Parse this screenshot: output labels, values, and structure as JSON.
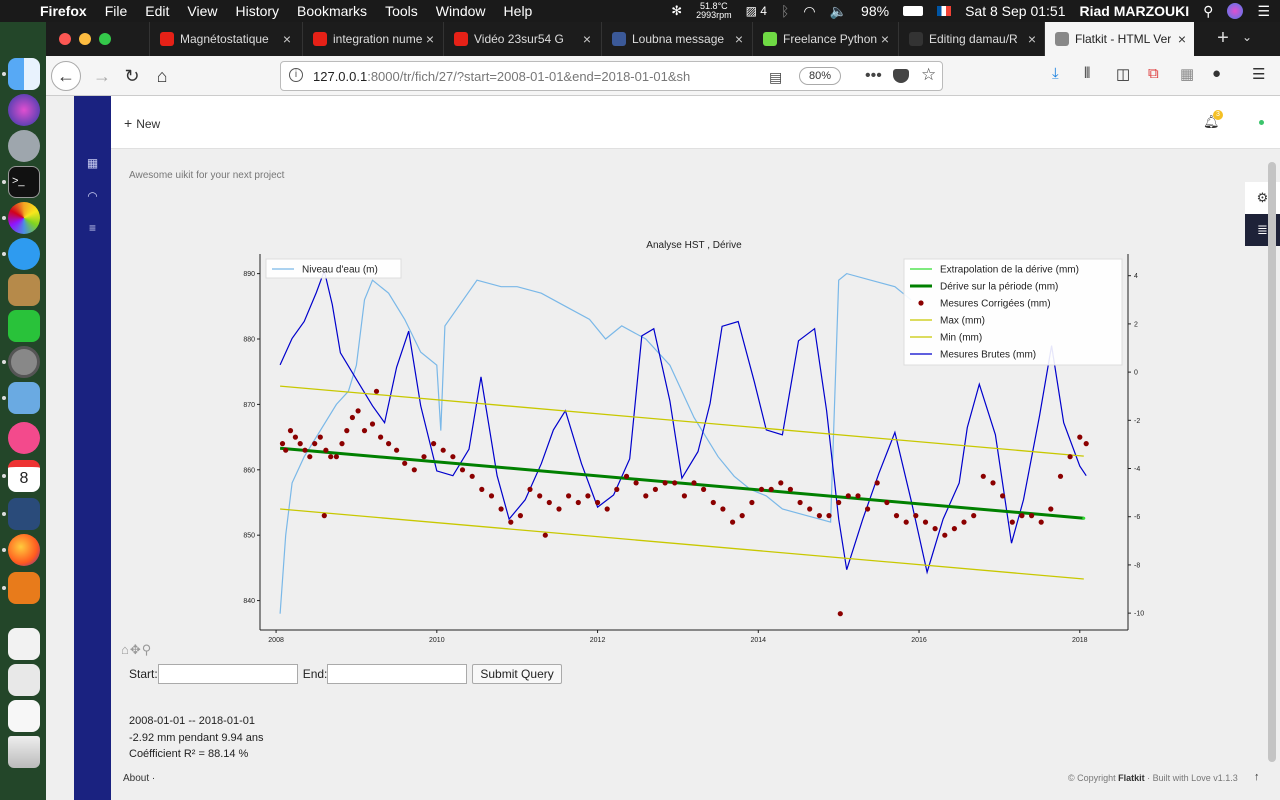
{
  "menubar": {
    "app": "Firefox",
    "items": [
      "File",
      "Edit",
      "View",
      "History",
      "Bookmarks",
      "Tools",
      "Window",
      "Help"
    ],
    "temp": "51.8°C",
    "rpm": "2993rpm",
    "battery": "98%",
    "battery_num": "4",
    "datetime": "Sat 8 Sep  01:51",
    "user": "Riad MARZOUKI"
  },
  "tabs": [
    {
      "label": "Magnétostatique",
      "icon": "youtube-icon",
      "color": "#e62117"
    },
    {
      "label": "integration nume",
      "icon": "youtube-icon",
      "color": "#e62117"
    },
    {
      "label": "Vidéo 23sur54 G",
      "icon": "youtube-icon",
      "color": "#e62117"
    },
    {
      "label": "Loubna message",
      "icon": "facebook-icon",
      "color": "#3b5998"
    },
    {
      "label": "Freelance Python",
      "icon": "upwork-icon",
      "color": "#6fda44"
    },
    {
      "label": "Editing damau/R",
      "icon": "github-icon",
      "color": "#333333"
    },
    {
      "label": "Flatkit - HTML Version",
      "icon": "page-icon",
      "color": "#888888"
    }
  ],
  "url": {
    "host": "127.0.0.1",
    "rest": ":8000/tr/fich/27/?start=2008-01-01&end=2018-01-01&sh",
    "zoom": "80%"
  },
  "page": {
    "new_label": "New",
    "notif_count": "3",
    "subtitle": "Awesome uikit for your next project",
    "form": {
      "start_label": "Start:",
      "end_label": "End:",
      "submit_label": "Submit Query"
    },
    "results": [
      "2008-01-01 -- 2018-01-01",
      "-2.92 mm pendant 9.94 ans",
      "Coéfficient R² = 88.14 %"
    ],
    "footer_about": "About ·",
    "footer_copyright": "© Copyright ",
    "footer_brand": "Flatkit",
    "footer_rest": " · Built with Love v1.1.3"
  },
  "chart_data": {
    "type": "line",
    "title": "Analyse HST , Dérive",
    "x_range": [
      2007.8,
      2018.6
    ],
    "x_ticks": [
      "2008",
      "2010",
      "2012",
      "2014",
      "2016",
      "2018"
    ],
    "left_axis": {
      "range": [
        835.5,
        893
      ],
      "ticks": [
        "840",
        "850",
        "860",
        "870",
        "880",
        "890"
      ]
    },
    "right_axis": {
      "range": [
        -10.7,
        4.9
      ],
      "ticks": [
        "-10",
        "-8",
        "-6",
        "-4",
        "-2",
        "0",
        "2",
        "4"
      ]
    },
    "legend_left": [
      {
        "name": "Niveau d'eau (m)",
        "color": "#7ab8e8"
      }
    ],
    "legend_right": [
      {
        "name": "Extrapolation de la dérive (mm)",
        "color": "#33dd33",
        "style": "line"
      },
      {
        "name": "Dérive sur la période (mm)",
        "color": "#008000",
        "style": "thick"
      },
      {
        "name": "Mesures Corrigées (mm)",
        "color": "#8b0000",
        "style": "dot"
      },
      {
        "name": "Max (mm)",
        "color": "#c8c800",
        "style": "line"
      },
      {
        "name": "Min (mm)",
        "color": "#c8c800",
        "style": "line"
      },
      {
        "name": "Mesures Brutes (mm)",
        "color": "#0000cc",
        "style": "line"
      }
    ],
    "series": [
      {
        "name": "Niveau d'eau (m)",
        "axis": "left",
        "x": [
          2008.05,
          2008.12,
          2008.2,
          2008.35,
          2008.55,
          2008.75,
          2008.9,
          2009.0,
          2009.1,
          2009.2,
          2009.4,
          2009.6,
          2009.8,
          2010.0,
          2010.05,
          2010.1,
          2010.5,
          2010.8,
          2011.0,
          2011.3,
          2011.6,
          2011.9,
          2012.1,
          2012.3,
          2012.6,
          2012.9,
          2013.2,
          2013.5,
          2013.7,
          2013.9,
          2014.1,
          2014.3,
          2014.6,
          2014.9,
          2015.0,
          2015.1,
          2015.4,
          2015.7,
          2015.9
        ],
        "y": [
          838,
          850,
          858,
          862,
          866,
          870,
          872,
          876,
          886,
          889,
          887,
          883,
          878,
          876,
          866,
          882,
          889,
          888,
          888,
          887,
          885,
          883,
          880,
          882,
          880,
          876,
          868,
          862,
          859,
          857,
          856,
          854,
          853,
          852,
          889,
          890,
          889,
          888,
          886
        ]
      },
      {
        "name": "Mesures Brutes (mm)",
        "axis": "right",
        "x": [
          2008.05,
          2008.2,
          2008.35,
          2008.5,
          2008.6,
          2008.7,
          2008.8,
          2009.0,
          2009.2,
          2009.35,
          2009.5,
          2009.65,
          2009.8,
          2010.0,
          2010.2,
          2010.4,
          2010.55,
          2010.75,
          2010.9,
          2011.1,
          2011.3,
          2011.45,
          2011.6,
          2011.8,
          2012.0,
          2012.2,
          2012.4,
          2012.55,
          2012.7,
          2012.9,
          2013.05,
          2013.25,
          2013.4,
          2013.55,
          2013.75,
          2013.95,
          2014.1,
          2014.3,
          2014.5,
          2014.7,
          2014.85,
          2015.0,
          2015.1,
          2015.3,
          2015.5,
          2015.7,
          2015.9,
          2016.1,
          2016.3,
          2016.5,
          2016.6,
          2016.75,
          2016.95,
          2017.15,
          2017.3,
          2017.5,
          2017.65,
          2017.8,
          2018.0,
          2018.08
        ],
        "y": [
          0.3,
          1.4,
          2.1,
          3.3,
          4.2,
          2.8,
          0.8,
          -0.3,
          -1.4,
          -2.1,
          0.2,
          1.7,
          -1.4,
          -4.1,
          -4.3,
          -3.2,
          -0.2,
          -4.3,
          -6.1,
          -5.3,
          -3.8,
          -2.4,
          -1.6,
          -3.8,
          -5.6,
          -5.1,
          -3.6,
          1.5,
          1.8,
          -1.2,
          -4.4,
          -3.3,
          -1.3,
          1.9,
          2.1,
          -0.4,
          -2.4,
          -2.6,
          1.3,
          1.8,
          -1.6,
          -6.1,
          -8.2,
          -6.1,
          -4.2,
          -2.5,
          -5.3,
          -8.3,
          -6.1,
          -4.6,
          -2.3,
          -0.5,
          -2.6,
          -7.1,
          -5.3,
          -1.8,
          1.1,
          -2.1,
          -3.9,
          -4.3
        ]
      },
      {
        "name": "Dérive sur la période (mm)",
        "axis": "left",
        "x": [
          2008.05,
          2018.05
        ],
        "y": [
          863.3,
          852.6
        ]
      },
      {
        "name": "Max (mm)",
        "axis": "left",
        "x": [
          2008.05,
          2018.05
        ],
        "y": [
          872.8,
          862.1
        ]
      },
      {
        "name": "Min (mm)",
        "axis": "left",
        "x": [
          2008.05,
          2018.05
        ],
        "y": [
          854.0,
          843.3
        ]
      },
      {
        "name": "Mesures Corrigées (mm)",
        "axis": "left",
        "x": [
          2008.08,
          2008.12,
          2008.18,
          2008.24,
          2008.3,
          2008.36,
          2008.42,
          2008.48,
          2008.55,
          2008.62,
          2008.68,
          2008.75,
          2008.82,
          2008.88,
          2008.95,
          2009.02,
          2009.1,
          2009.2,
          2009.3,
          2009.4,
          2009.5,
          2009.6,
          2009.72,
          2009.84,
          2009.96,
          2010.08,
          2010.2,
          2010.32,
          2010.44,
          2010.56,
          2010.68,
          2010.8,
          2010.92,
          2011.04,
          2011.16,
          2011.28,
          2011.4,
          2011.52,
          2011.64,
          2011.76,
          2011.88,
          2012.0,
          2012.12,
          2012.24,
          2012.36,
          2012.48,
          2012.6,
          2012.72,
          2012.84,
          2012.96,
          2013.08,
          2013.2,
          2013.32,
          2013.44,
          2013.56,
          2013.68,
          2013.8,
          2013.92,
          2014.04,
          2014.16,
          2014.28,
          2014.4,
          2014.52,
          2014.64,
          2014.76,
          2014.88,
          2015.0,
          2015.12,
          2015.24,
          2015.36,
          2015.48,
          2015.6,
          2015.72,
          2015.84,
          2015.96,
          2016.08,
          2016.2,
          2016.32,
          2016.44,
          2016.56,
          2016.68,
          2016.8,
          2016.92,
          2017.04,
          2017.16,
          2017.28,
          2017.4,
          2017.52,
          2017.64,
          2017.76,
          2017.88,
          2018.0,
          2018.08,
          2008.6,
          2009.25,
          2011.35,
          2015.02
        ],
        "y": [
          864,
          863,
          866,
          865,
          864,
          863,
          862,
          864,
          865,
          863,
          862,
          862,
          864,
          866,
          868,
          869,
          866,
          867,
          865,
          864,
          863,
          861,
          860,
          862,
          864,
          863,
          862,
          860,
          859,
          857,
          856,
          854,
          852,
          853,
          857,
          856,
          855,
          854,
          856,
          855,
          856,
          855,
          854,
          857,
          859,
          858,
          856,
          857,
          858,
          858,
          856,
          858,
          857,
          855,
          854,
          852,
          853,
          855,
          857,
          857,
          858,
          857,
          855,
          854,
          853,
          853,
          855,
          856,
          856,
          854,
          858,
          855,
          853,
          852,
          853,
          852,
          851,
          850,
          851,
          852,
          853,
          859,
          858,
          856,
          852,
          853,
          853,
          852,
          854,
          859,
          862,
          865,
          864,
          853,
          872,
          850,
          838
        ]
      }
    ]
  }
}
